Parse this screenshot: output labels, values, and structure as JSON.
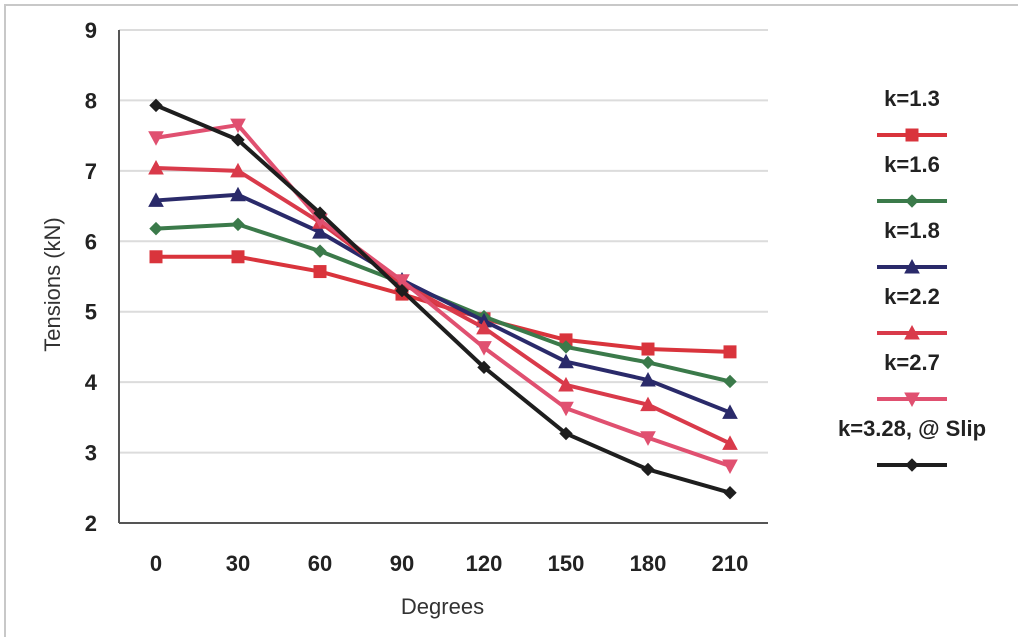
{
  "chart_data": {
    "type": "line",
    "title": "",
    "xlabel": "Degrees",
    "ylabel": "Tensions (kN)",
    "x": [
      0,
      30,
      60,
      90,
      120,
      150,
      180,
      210
    ],
    "x_tick_labels": [
      "0",
      "30",
      "60",
      "90",
      "120",
      "150",
      "180",
      "210"
    ],
    "y_tick_labels": [
      "2",
      "3",
      "4",
      "5",
      "6",
      "7",
      "8",
      "9"
    ],
    "ylim": [
      2,
      9
    ],
    "grid": true,
    "legend_position": "right",
    "series": [
      {
        "name": "k=1.3",
        "color": "#d9343c",
        "marker": "square",
        "values": [
          5.78,
          5.78,
          5.57,
          5.25,
          4.9,
          4.6,
          4.47,
          4.43
        ]
      },
      {
        "name": "k=1.6",
        "color": "#3b7a4a",
        "marker": "diamond",
        "values": [
          6.18,
          6.24,
          5.86,
          5.41,
          4.93,
          4.5,
          4.28,
          4.01
        ]
      },
      {
        "name": "k=1.8",
        "color": "#2a2a6a",
        "marker": "triangle",
        "values": [
          6.58,
          6.66,
          6.13,
          5.45,
          4.87,
          4.29,
          4.03,
          3.57
        ]
      },
      {
        "name": "k=2.2",
        "color": "#d93a4a",
        "marker": "triangle",
        "values": [
          7.04,
          7.0,
          6.27,
          5.4,
          4.77,
          3.96,
          3.68,
          3.13
        ]
      },
      {
        "name": "k=2.7",
        "color": "#e05070",
        "marker": "triangle-down",
        "values": [
          7.47,
          7.65,
          6.3,
          5.44,
          4.49,
          3.63,
          3.21,
          2.81
        ]
      },
      {
        "name": "k=3.28, @ Slip",
        "color": "#1e1e1e",
        "marker": "diamond",
        "values": [
          7.93,
          7.44,
          6.4,
          5.3,
          4.21,
          3.27,
          2.76,
          2.43
        ]
      }
    ]
  }
}
